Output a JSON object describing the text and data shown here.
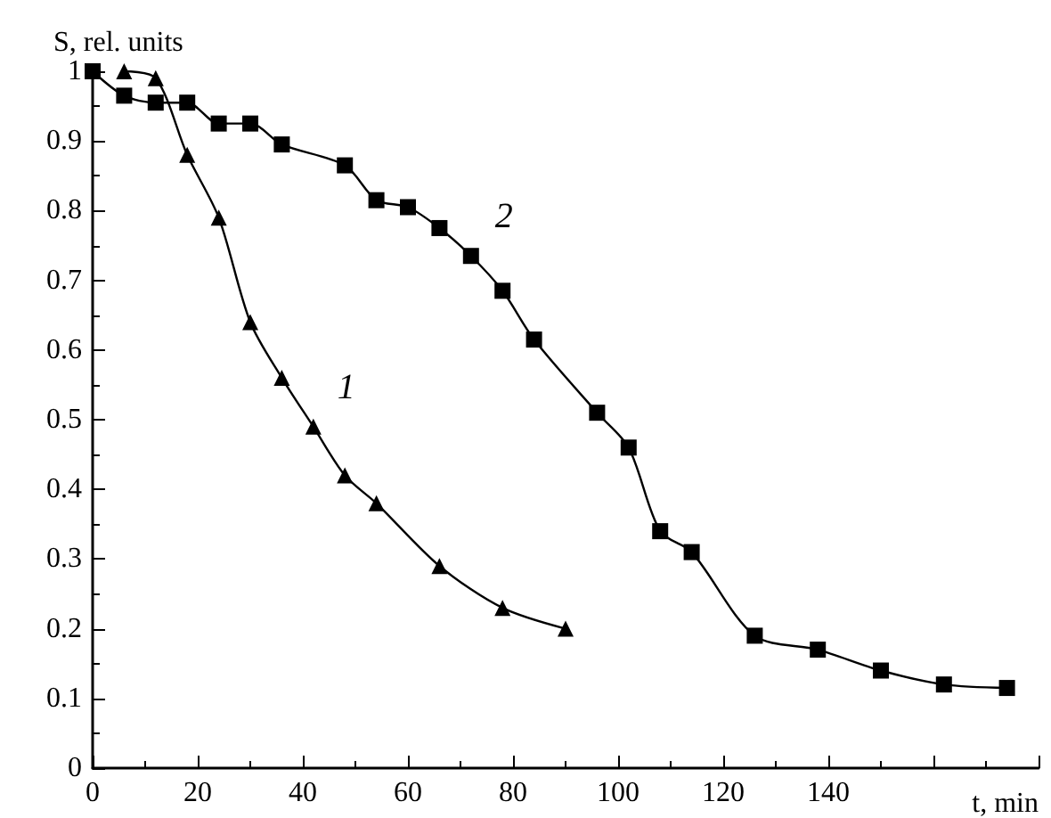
{
  "chart_data": {
    "type": "line",
    "xlabel": "t, min",
    "ylabel": "S, rel. units",
    "xlim": [
      0,
      180
    ],
    "ylim": [
      0,
      1
    ],
    "xticks": [
      0,
      20,
      40,
      60,
      80,
      100,
      120,
      140,
      {
        "value": 160,
        "label": null
      },
      {
        "value": 180,
        "label": null
      }
    ],
    "yticks": [
      0,
      0.1,
      0.2,
      0.3,
      0.4,
      0.5,
      0.6,
      0.7,
      0.8,
      0.9,
      1
    ],
    "grid": false,
    "legend": false,
    "line_style": "solid",
    "series": [
      {
        "name": "1",
        "color": "#000000",
        "marker": "triangle",
        "x": [
          6,
          12,
          18,
          24,
          30,
          36,
          42,
          48,
          54,
          66,
          78,
          90
        ],
        "values": [
          1.0,
          0.99,
          0.88,
          0.79,
          0.64,
          0.56,
          0.49,
          0.42,
          0.38,
          0.29,
          0.23,
          0.2
        ]
      },
      {
        "name": "2",
        "color": "#000000",
        "marker": "square",
        "x": [
          0,
          6,
          12,
          18,
          24,
          30,
          36,
          48,
          54,
          60,
          66,
          72,
          78,
          84,
          96,
          102,
          108,
          114,
          126,
          138,
          150,
          162,
          174
        ],
        "values": [
          1.0,
          0.965,
          0.955,
          0.955,
          0.925,
          0.925,
          0.895,
          0.865,
          0.815,
          0.805,
          0.775,
          0.735,
          0.685,
          0.615,
          0.51,
          0.46,
          0.34,
          0.31,
          0.19,
          0.17,
          0.14,
          0.12,
          0.115
        ]
      }
    ]
  }
}
